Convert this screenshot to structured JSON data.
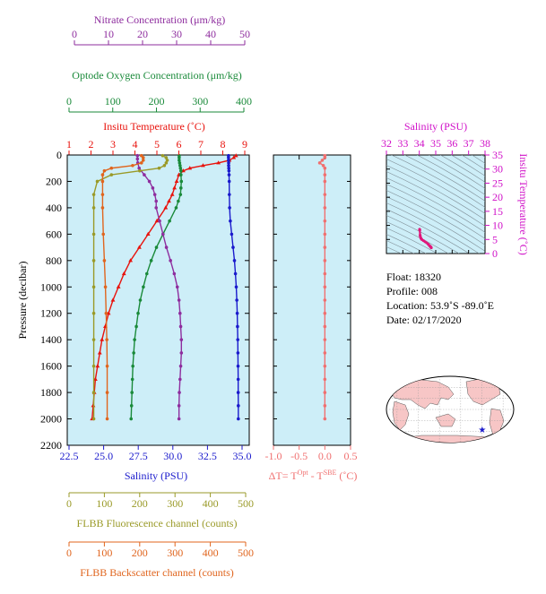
{
  "colors": {
    "nitrate": "#8e2d9e",
    "oxygen": "#1a8a3a",
    "temperature": "#e8120c",
    "salinity": "#1a1acc",
    "fluorescence": "#9a9a28",
    "backscatter": "#e0651e",
    "delta_t": "#f07070",
    "ts_axis": "#d010c8",
    "plot_bg": "#cdeef8"
  },
  "axes": {
    "nitrate": {
      "label": "Nitrate Concentration (μm/kg)",
      "min": 0,
      "max": 50,
      "ticks": [
        "0",
        "10",
        "20",
        "30",
        "40",
        "50"
      ]
    },
    "oxygen": {
      "label": "Optode Oxygen Concentration (μm/kg)",
      "min": 0,
      "max": 400,
      "ticks": [
        "0",
        "100",
        "200",
        "300",
        "400"
      ]
    },
    "temperature": {
      "label": "Insitu Temperature (˚C)",
      "min": 1,
      "max": 9,
      "ticks": [
        "1",
        "2",
        "3",
        "4",
        "5",
        "6",
        "7",
        "8",
        "9"
      ]
    },
    "pressure": {
      "label": "Pressure (decibar)",
      "min": 0,
      "max": 2200,
      "ticks": [
        "0",
        "200",
        "400",
        "600",
        "800",
        "1000",
        "1200",
        "1400",
        "1600",
        "1800",
        "2000",
        "2200"
      ]
    },
    "salinity": {
      "label": "Salinity (PSU)",
      "min": 22.5,
      "max": 35.0,
      "ticks": [
        "22.5",
        "25.0",
        "27.5",
        "30.0",
        "32.5",
        "35.0"
      ]
    },
    "fluorescence": {
      "label": "FLBB Fluorescence channel (counts)",
      "min": 0,
      "max": 500,
      "ticks": [
        "0",
        "100",
        "200",
        "300",
        "400",
        "500"
      ]
    },
    "backscatter": {
      "label": "FLBB Backscatter channel (counts)",
      "min": 0,
      "max": 500,
      "ticks": [
        "0",
        "100",
        "200",
        "300",
        "400",
        "500"
      ]
    },
    "delta_t": {
      "label": "ΔT= T",
      "label_sup1": "Opt",
      "label_mid": " - T",
      "label_sup2": "SBE",
      "label_end": " (˚C)",
      "min": -1.0,
      "max": 0.5,
      "ticks": [
        "-1.0",
        "-0.5",
        "0.0",
        "0.5"
      ]
    },
    "ts_salinity": {
      "label": "Salinity (PSU)",
      "min": 32,
      "max": 38,
      "ticks": [
        "32",
        "33",
        "34",
        "35",
        "36",
        "37",
        "38"
      ]
    },
    "ts_temperature": {
      "label": "Insitu Temperature (˚C)",
      "min": 0,
      "max": 35,
      "ticks": [
        "0",
        "5",
        "10",
        "15",
        "20",
        "25",
        "30",
        "35"
      ]
    }
  },
  "info": {
    "float": "Float:  18320",
    "profile": "Profile:  008",
    "location": "Location:  53.9˚S  -89.0˚E",
    "date": "Date:  02/17/2020"
  },
  "map": {
    "marker_lat": -53.9,
    "marker_lon": -89.0
  },
  "chart_data": [
    {
      "type": "line",
      "title": "",
      "ylabel": "Pressure (decibar)",
      "ylim": [
        2200,
        0
      ],
      "series": [
        {
          "name": "Insitu Temperature (˚C)",
          "x_axis": "temperature",
          "pressure": [
            5,
            20,
            40,
            60,
            80,
            100,
            120,
            150,
            200,
            250,
            300,
            350,
            400,
            500,
            600,
            700,
            800,
            900,
            1000,
            1100,
            1200,
            1300,
            1400,
            1500,
            1600,
            1700,
            1800,
            1900,
            2000
          ],
          "values": [
            8.6,
            8.5,
            8.3,
            7.8,
            7.1,
            6.5,
            6.2,
            6.0,
            5.9,
            5.8,
            5.7,
            5.55,
            5.4,
            5.0,
            4.6,
            4.2,
            3.8,
            3.5,
            3.25,
            3.0,
            2.8,
            2.65,
            2.5,
            2.4,
            2.3,
            2.2,
            2.15,
            2.1,
            2.05
          ]
        },
        {
          "name": "Salinity (PSU)",
          "x_axis": "salinity",
          "pressure": [
            5,
            20,
            40,
            60,
            80,
            100,
            120,
            150,
            200,
            300,
            400,
            500,
            600,
            700,
            800,
            900,
            1000,
            1100,
            1200,
            1300,
            1400,
            1500,
            1600,
            1700,
            1800,
            1900,
            2000
          ],
          "values": [
            34.02,
            34.02,
            34.02,
            34.03,
            34.03,
            34.04,
            34.05,
            34.06,
            34.07,
            34.08,
            34.1,
            34.15,
            34.25,
            34.35,
            34.45,
            34.52,
            34.58,
            34.62,
            34.65,
            34.67,
            34.69,
            34.7,
            34.71,
            34.72,
            34.72,
            34.73,
            34.73
          ]
        },
        {
          "name": "Optode Oxygen Concentration (μm/kg)",
          "x_axis": "oxygen",
          "pressure": [
            5,
            20,
            40,
            60,
            80,
            100,
            120,
            150,
            200,
            250,
            300,
            350,
            400,
            500,
            600,
            700,
            800,
            900,
            1000,
            1100,
            1200,
            1300,
            1400,
            1500,
            1600,
            1700,
            1800,
            1900,
            2000
          ],
          "values": [
            252,
            252,
            252,
            253,
            254,
            255,
            256,
            256,
            257,
            256,
            255,
            250,
            245,
            230,
            215,
            200,
            188,
            178,
            170,
            163,
            158,
            154,
            150,
            148,
            146,
            145,
            144,
            143,
            142
          ]
        },
        {
          "name": "Nitrate Concentration (μm/kg)",
          "x_axis": "nitrate",
          "pressure": [
            5,
            30,
            60,
            100,
            150,
            200,
            250,
            300,
            350,
            400,
            500,
            600,
            700,
            800,
            900,
            1000,
            1100,
            1200,
            1300,
            1400,
            1500,
            1600,
            1700,
            1800,
            1900,
            2000
          ],
          "values": [
            18.5,
            18.5,
            18.6,
            19,
            20.5,
            22.0,
            23.0,
            23.6,
            24.0,
            24.0,
            25.0,
            26.0,
            27.0,
            28.2,
            29.3,
            30.2,
            30.7,
            31.0,
            31.2,
            31.4,
            31.4,
            31.2,
            31.0,
            30.8,
            30.7,
            30.7
          ]
        },
        {
          "name": "FLBB Fluorescence channel (counts)",
          "x_axis": "fluorescence",
          "pressure": [
            5,
            20,
            40,
            60,
            80,
            100,
            120,
            150,
            200,
            300,
            400,
            600,
            800,
            1000,
            1200,
            1400,
            1600,
            1800,
            2000
          ],
          "values": [
            265,
            275,
            278,
            275,
            270,
            255,
            200,
            120,
            80,
            70,
            70,
            70,
            70,
            70,
            70,
            70,
            70,
            70,
            70
          ]
        },
        {
          "name": "FLBB Backscatter channel (counts)",
          "x_axis": "backscatter",
          "pressure": [
            5,
            20,
            40,
            60,
            80,
            100,
            120,
            150,
            200,
            300,
            400,
            600,
            800,
            1000,
            1200,
            1400,
            1600,
            1800,
            2000
          ],
          "values": [
            205,
            210,
            210,
            205,
            180,
            120,
            100,
            95,
            95,
            95,
            95,
            97,
            100,
            103,
            105,
            107,
            108,
            108,
            108
          ]
        }
      ]
    },
    {
      "type": "line",
      "title": "",
      "xlabel": "ΔT= TOpt - TSBE (˚C)",
      "ylim": [
        2200,
        0
      ],
      "xlim": [
        -1.0,
        0.5
      ],
      "series": [
        {
          "name": "ΔT",
          "pressure": [
            5,
            20,
            40,
            60,
            80,
            100,
            150,
            200,
            300,
            400,
            500,
            600,
            700,
            800,
            900,
            1000,
            1100,
            1200,
            1300,
            1400,
            1500,
            1600,
            1700,
            1800,
            1900,
            2000
          ],
          "values": [
            0.0,
            0.0,
            -0.05,
            -0.1,
            -0.03,
            0.0,
            0.0,
            0.0,
            0.0,
            0.0,
            0.0,
            0.0,
            0.0,
            0.0,
            0.0,
            0.0,
            0.0,
            0.0,
            0.0,
            0.0,
            0.0,
            0.0,
            0.0,
            0.0,
            0.0,
            0.0
          ]
        }
      ]
    },
    {
      "type": "scatter",
      "title": "",
      "xlabel": "Salinity (PSU)",
      "ylabel": "Insitu Temperature (˚C)",
      "xlim": [
        32,
        38
      ],
      "ylim": [
        0,
        35
      ],
      "series": [
        {
          "name": "T-S",
          "x": [
            34.02,
            34.03,
            34.05,
            34.07,
            34.1,
            34.15,
            34.25,
            34.35,
            34.45,
            34.55,
            34.62,
            34.67,
            34.7,
            34.72,
            34.73
          ],
          "y": [
            8.6,
            8.3,
            6.5,
            5.9,
            5.4,
            5.0,
            4.6,
            4.2,
            3.8,
            3.25,
            2.8,
            2.5,
            2.3,
            2.15,
            2.05
          ]
        }
      ]
    }
  ]
}
